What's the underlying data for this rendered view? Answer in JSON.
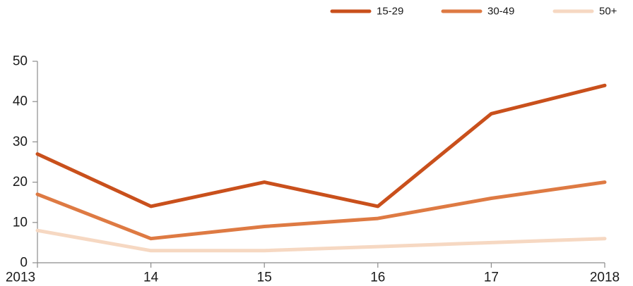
{
  "chart_data": {
    "type": "line",
    "title": "",
    "xlabel": "",
    "ylabel": "",
    "x": [
      "2013",
      "14",
      "15",
      "16",
      "17",
      "2018"
    ],
    "ylim": [
      0,
      50
    ],
    "yticks": [
      0,
      10,
      20,
      30,
      40,
      50
    ],
    "grid": false,
    "legend_position": "top-right",
    "series": [
      {
        "name": "15-29",
        "color": "#c9501c",
        "values": [
          27,
          14,
          20,
          14,
          37,
          44
        ]
      },
      {
        "name": "30-49",
        "color": "#de7a43",
        "values": [
          17,
          6,
          9,
          11,
          16,
          20
        ]
      },
      {
        "name": "50+",
        "color": "#f6d8c2",
        "values": [
          8,
          3,
          3,
          4,
          5,
          6
        ]
      }
    ]
  }
}
